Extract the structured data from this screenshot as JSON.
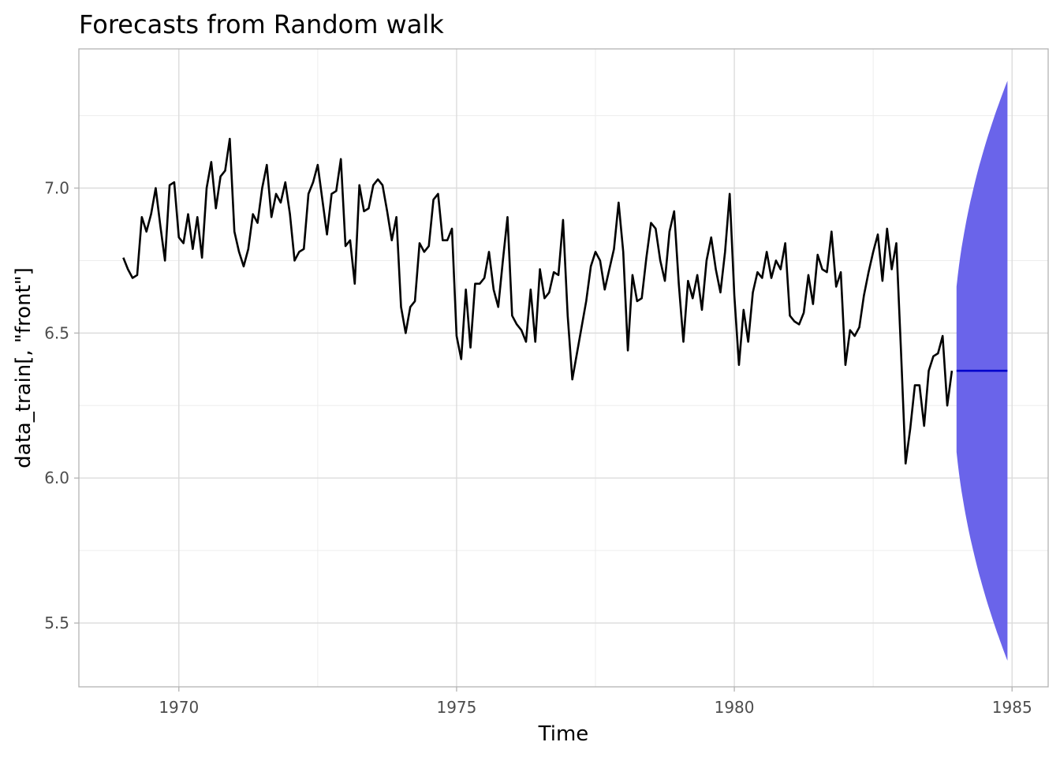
{
  "chart_data": {
    "type": "line",
    "title": "Forecasts from Random walk",
    "xlabel": "Time",
    "ylabel": "data_train[, \"front\"]",
    "xlim": [
      1968.2,
      1985.65
    ],
    "ylim": [
      5.28,
      7.48
    ],
    "x_ticks": [
      1970,
      1975,
      1980,
      1985
    ],
    "x_tick_labels": [
      "1970",
      "1975",
      "1980",
      "1985"
    ],
    "y_ticks": [
      5.5,
      6.0,
      6.5,
      7.0
    ],
    "y_tick_labels": [
      "5.5",
      "6.0",
      "6.5",
      "7.0"
    ],
    "grid": true,
    "series": [
      {
        "start": 1969.0,
        "frequency": 12,
        "color": "#000000",
        "values": [
          6.76,
          6.72,
          6.69,
          6.7,
          6.9,
          6.85,
          6.91,
          7.0,
          6.87,
          6.75,
          7.01,
          7.02,
          6.83,
          6.81,
          6.91,
          6.79,
          6.9,
          6.76,
          7.0,
          7.09,
          6.93,
          7.04,
          7.06,
          7.17,
          6.85,
          6.78,
          6.73,
          6.79,
          6.91,
          6.88,
          7.0,
          7.08,
          6.9,
          6.98,
          6.95,
          7.02,
          6.91,
          6.75,
          6.78,
          6.79,
          6.98,
          7.02,
          7.08,
          6.96,
          6.84,
          6.98,
          6.99,
          7.1,
          6.8,
          6.82,
          6.67,
          7.01,
          6.92,
          6.93,
          7.01,
          7.03,
          7.01,
          6.92,
          6.82,
          6.9,
          6.59,
          6.5,
          6.59,
          6.61,
          6.81,
          6.78,
          6.8,
          6.96,
          6.98,
          6.82,
          6.82,
          6.86,
          6.49,
          6.41,
          6.65,
          6.45,
          6.67,
          6.67,
          6.69,
          6.78,
          6.65,
          6.59,
          6.75,
          6.9,
          6.56,
          6.53,
          6.51,
          6.47,
          6.65,
          6.47,
          6.72,
          6.62,
          6.64,
          6.71,
          6.7,
          6.89,
          6.56,
          6.34,
          6.43,
          6.52,
          6.61,
          6.73,
          6.78,
          6.75,
          6.65,
          6.72,
          6.79,
          6.95,
          6.78,
          6.44,
          6.7,
          6.61,
          6.62,
          6.76,
          6.88,
          6.86,
          6.75,
          6.68,
          6.85,
          6.92,
          6.67,
          6.47,
          6.68,
          6.62,
          6.7,
          6.58,
          6.75,
          6.83,
          6.72,
          6.64,
          6.78,
          6.98,
          6.63,
          6.39,
          6.58,
          6.47,
          6.64,
          6.71,
          6.69,
          6.78,
          6.69,
          6.75,
          6.72,
          6.81,
          6.56,
          6.54,
          6.53,
          6.57,
          6.7,
          6.6,
          6.77,
          6.72,
          6.71,
          6.85,
          6.66,
          6.71,
          6.39,
          6.51,
          6.49,
          6.52,
          6.63,
          6.71,
          6.78,
          6.84,
          6.68,
          6.86,
          6.72,
          6.81,
          6.44,
          6.05,
          6.17,
          6.32,
          6.32,
          6.18,
          6.37,
          6.42,
          6.43,
          6.49,
          6.25,
          6.37
        ]
      }
    ],
    "forecast": {
      "start": 1984.0,
      "end": 1984.9167,
      "point": 6.37,
      "color": "#0000cc",
      "interval": {
        "color": "#6a64ea",
        "start_lower": 6.09,
        "start_upper": 6.66,
        "end_lower": 5.37,
        "end_upper": 7.37
      }
    }
  }
}
